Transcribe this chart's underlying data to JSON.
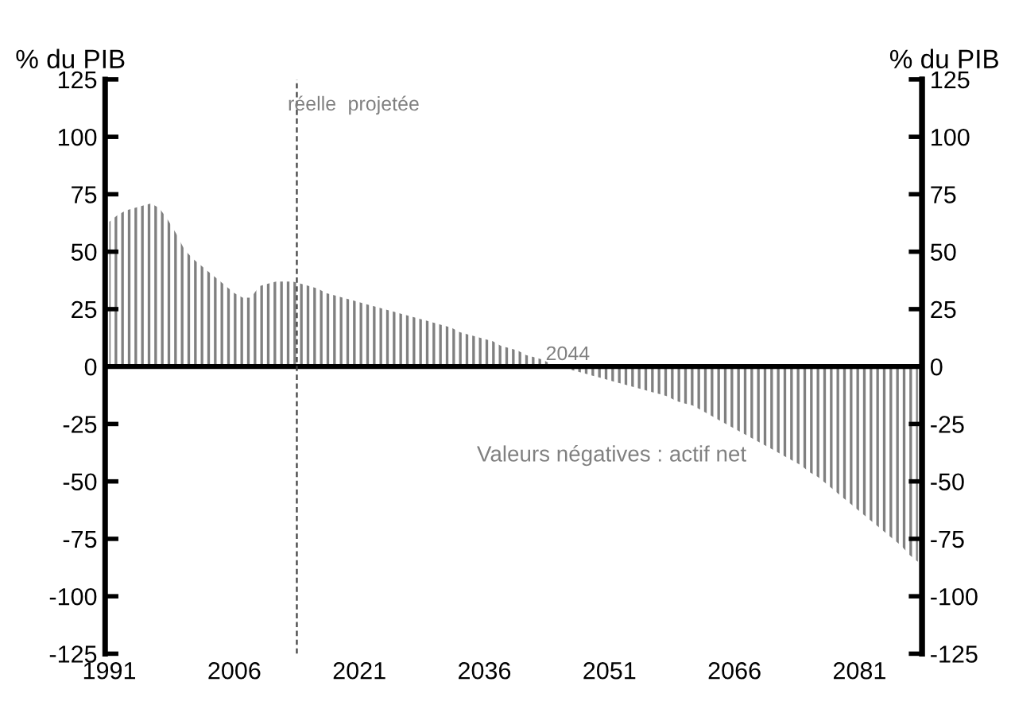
{
  "chart_data": {
    "type": "area",
    "ylabel": "% du PIB",
    "y2label": "% du PIB",
    "x": [
      1991,
      1992,
      1993,
      1994,
      1995,
      1996,
      1997,
      1998,
      1999,
      2000,
      2001,
      2002,
      2003,
      2004,
      2005,
      2006,
      2007,
      2008,
      2009,
      2010,
      2011,
      2012,
      2013,
      2014,
      2015,
      2016,
      2017,
      2018,
      2019,
      2020,
      2021,
      2022,
      2023,
      2024,
      2025,
      2026,
      2027,
      2028,
      2029,
      2030,
      2031,
      2032,
      2033,
      2034,
      2035,
      2036,
      2037,
      2038,
      2039,
      2040,
      2041,
      2042,
      2043,
      2044,
      2045,
      2046,
      2047,
      2048,
      2049,
      2050,
      2051,
      2052,
      2053,
      2054,
      2055,
      2056,
      2057,
      2058,
      2059,
      2060,
      2061,
      2062,
      2063,
      2064,
      2065,
      2066,
      2067,
      2068,
      2069,
      2070,
      2071,
      2072,
      2073,
      2074,
      2075,
      2076,
      2077,
      2078,
      2079,
      2080,
      2081,
      2082,
      2083,
      2084,
      2085,
      2086,
      2087,
      2088
    ],
    "series": [
      {
        "color": "#808080",
        "values": [
          63,
          66,
          68,
          69,
          70,
          71,
          69,
          64,
          58,
          51,
          47,
          44,
          41,
          38,
          35,
          32,
          30,
          30,
          35,
          36,
          37,
          37,
          37,
          36,
          35,
          34,
          32,
          31,
          30,
          29,
          28,
          27,
          26,
          25,
          24,
          23,
          22,
          21,
          20,
          19,
          18,
          17,
          15,
          14,
          13,
          12,
          11,
          9,
          8,
          7,
          5,
          4,
          3,
          1,
          0,
          -1,
          -2,
          -3,
          -4,
          -5,
          -6,
          -7,
          -8,
          -9,
          -10,
          -11,
          -12,
          -13,
          -15,
          -16,
          -17,
          -19,
          -21,
          -23,
          -25,
          -27,
          -29,
          -31,
          -33,
          -35,
          -37,
          -39,
          -41,
          -43,
          -46,
          -48,
          -51,
          -54,
          -57,
          -60,
          -63,
          -66,
          -69,
          -72,
          -75,
          -78,
          -82,
          -85
        ]
      }
    ],
    "xlim": [
      1990.5,
      2088.5
    ],
    "xticks": [
      1991,
      2006,
      2021,
      2036,
      2051,
      2066,
      2081
    ],
    "ylim": [
      -125,
      125
    ],
    "yticks": [
      -125,
      -100,
      -75,
      -50,
      -25,
      0,
      25,
      50,
      75,
      100,
      125
    ],
    "y2lim": [
      -125,
      125
    ],
    "y2ticks": [
      -125,
      -100,
      -75,
      -50,
      -25,
      0,
      25,
      50,
      75,
      100,
      125
    ],
    "ref_lines": [
      {
        "axis": "y",
        "value": 0,
        "color": "#000000",
        "line_style": "solid"
      },
      {
        "axis": "x",
        "value": 2013.5,
        "color": "#404040",
        "line_style": "dashed"
      }
    ],
    "annotations": [
      "réelle",
      "projetée",
      {
        "text": "2044",
        "x": 2046,
        "y": 1
      },
      "Valeurs négatives : actif net"
    ],
    "grid": false,
    "legend": false
  }
}
